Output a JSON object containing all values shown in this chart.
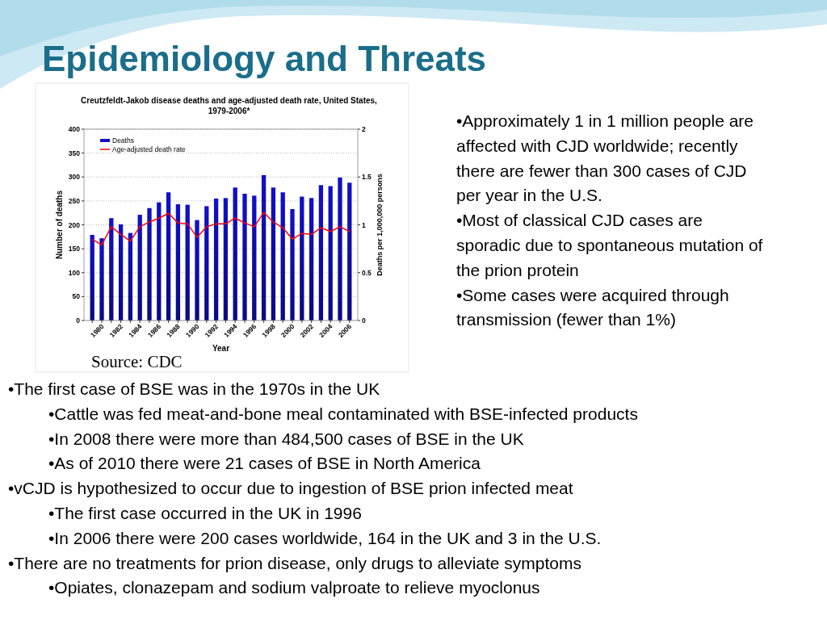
{
  "chart_data": {
    "type": "bar",
    "title": "Creutzfeldt-Jakob disease deaths and age-adjusted death rate, United States, 1979-2006*",
    "xlabel": "Year",
    "ylabel": "Number of deaths",
    "y2label": "Deaths per 1,000,000 persons",
    "categories": [
      null,
      "1980",
      null,
      "1982",
      null,
      "1984",
      null,
      "1986",
      null,
      "1988",
      null,
      "1990",
      null,
      "1992",
      null,
      "1994",
      null,
      "1996",
      null,
      "1998",
      null,
      "2000",
      null,
      "2002",
      null,
      "2004",
      null,
      "2006"
    ],
    "series": [
      {
        "name": "Deaths",
        "color": "#1010c8",
        "values": [
          179,
          172,
          214,
          201,
          183,
          221,
          235,
          247,
          268,
          243,
          242,
          210,
          239,
          255,
          256,
          278,
          265,
          261,
          304,
          278,
          268,
          233,
          259,
          256,
          283,
          281,
          299,
          288
        ]
      },
      {
        "name": "Age-adjusted death rate",
        "type": "line",
        "axis": "y2",
        "color": "#ff0000",
        "values": [
          0.85,
          0.79,
          0.98,
          0.9,
          0.83,
          0.98,
          1.03,
          1.07,
          1.12,
          1.02,
          1.01,
          0.87,
          0.98,
          1.01,
          1.01,
          1.07,
          1.02,
          0.98,
          1.13,
          1.03,
          0.97,
          0.85,
          0.91,
          0.9,
          0.97,
          0.93,
          0.98,
          0.93
        ]
      }
    ],
    "ylim": [
      0,
      400
    ],
    "yticks": [
      0,
      50,
      100,
      150,
      200,
      250,
      300,
      350,
      400
    ],
    "y2lim": [
      0,
      2
    ],
    "y2ticks": [
      0,
      0.5,
      1,
      1.5,
      2
    ],
    "grid": "y",
    "legend": "top left",
    "annotations": [
      "Epidemiology and Threats",
      "Source: CDC",
      "•Approximately 1 in 1 million people are affected with CJD worldwide;  recently there are fewer than 300 cases of CJD per year in the U.S.",
      "•Most of classical CJD cases are sporadic due to spontaneous mutation of the prion protein",
      "•Some cases were acquired through transmission (fewer than 1%)",
      "•The first case of BSE was in the 1970s in the UK",
      "•Cattle was fed meat-and-bone meal contaminated with BSE-infected products",
      "•In 2008 there were more than 484,500 cases of BSE in the UK",
      "•As of 2010 there were 21 cases of BSE in North America",
      "•vCJD is hypothesized to occur due to ingestion of BSE prion infected meat",
      "•The first case occurred in the UK in 1996",
      "•In 2006 there were 200 cases worldwide, 164 in the UK and 3 in the U.S.",
      "•There are no treatments for prion disease, only drugs to alleviate symptoms",
      "•Opiates, clonazepam and sodium valproate to relieve myoclonus"
    ]
  }
}
